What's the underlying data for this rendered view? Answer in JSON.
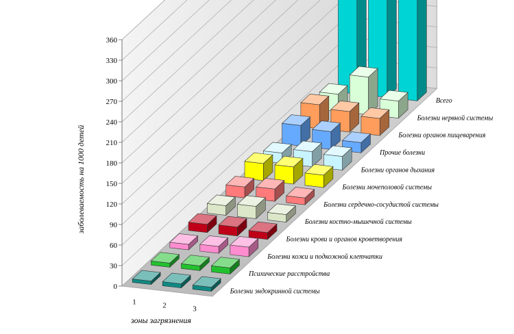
{
  "chart_data": {
    "type": "bar",
    "variant": "3d-column",
    "title": "",
    "xlabel": "зоны загрязнения",
    "ylabel": "заболеваемость на 1000 детей",
    "ylim": [
      0,
      360
    ],
    "yticks": [
      0,
      30,
      60,
      90,
      120,
      150,
      180,
      210,
      240,
      270,
      300,
      330,
      360
    ],
    "categories": [
      "1",
      "2",
      "3"
    ],
    "grid": true,
    "series": [
      {
        "name": "Болезни эндокринной системы",
        "color": "#0f8a83",
        "values": [
          5,
          6,
          6
        ]
      },
      {
        "name": "Психические расстройства",
        "color": "#22c22e",
        "values": [
          6,
          7,
          9
        ]
      },
      {
        "name": "Болезни кожи и подкожной клетчатки",
        "color": "#ff8ccf",
        "values": [
          8,
          10,
          14
        ]
      },
      {
        "name": "Болезни крови и органов кроветворения",
        "color": "#c00018",
        "values": [
          12,
          13,
          10
        ]
      },
      {
        "name": "Болезни костно-мышечной системы",
        "color": "#dbe7c8",
        "values": [
          14,
          18,
          11
        ]
      },
      {
        "name": "Болезни сердечно-сосудистой системы",
        "color": "#ff7a7a",
        "values": [
          16,
          18,
          10
        ]
      },
      {
        "name": "Болезни мочеполовой системы",
        "color": "#ffff00",
        "values": [
          25,
          25,
          18
        ]
      },
      {
        "name": "Болезни органов дыхания",
        "color": "#c8f4ff",
        "values": [
          15,
          22,
          20
        ]
      },
      {
        "name": "Прочие болезни",
        "color": "#66aaff",
        "values": [
          30,
          26,
          15
        ]
      },
      {
        "name": "Болезни органов пищеварения",
        "color": "#ff9d5c",
        "values": [
          35,
          30,
          25
        ]
      },
      {
        "name": "Болезни нервной системы",
        "color": "#d8ffd8",
        "values": [
          25,
          55,
          25
        ]
      },
      {
        "name": "Всего",
        "color": "#00d4d4",
        "values": [
          195,
          305,
          165
        ]
      }
    ]
  }
}
